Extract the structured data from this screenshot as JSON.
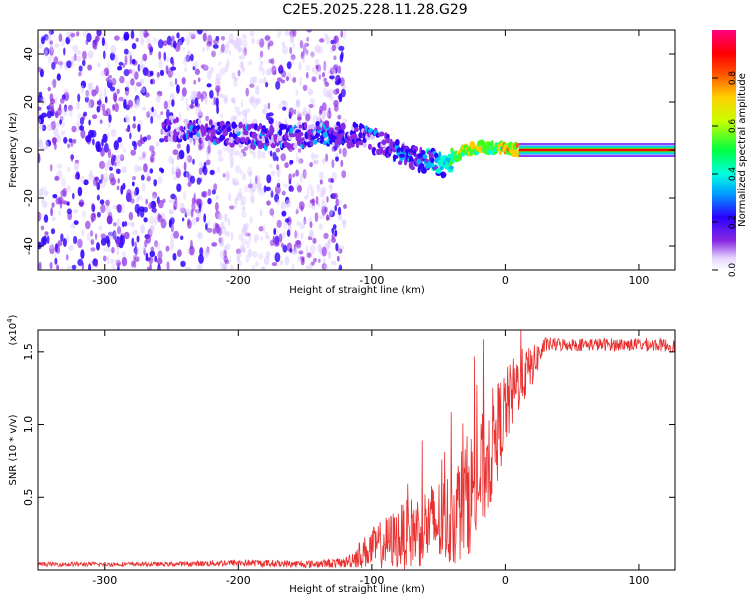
{
  "title": "C2E5.2025.228.11.28.G29",
  "chart_data": [
    {
      "type": "heatmap",
      "xlabel": "Height of straight line (km)",
      "ylabel": "Frequency (Hz)",
      "xlim": [
        -350,
        127
      ],
      "ylim": [
        -50,
        50
      ],
      "x_ticks": [
        -300,
        -200,
        -100,
        0,
        100
      ],
      "y_ticks": [
        -40,
        -20,
        0,
        20,
        40
      ],
      "colorbar": {
        "label": "Normalized spectral amplitude",
        "range": [
          0.0,
          1.0
        ],
        "ticks": [
          0.0,
          0.2,
          0.4,
          0.6,
          0.8
        ],
        "colormap": "rainbow (white→violet→blue→cyan→green→yellow→red→magenta)"
      },
      "ridge": {
        "x": [
          -255,
          -230,
          -200,
          -170,
          -140,
          -110,
          -90,
          -70,
          -55,
          -45,
          -38,
          -30,
          -20,
          -10,
          0,
          10,
          127
        ],
        "frequency": [
          9,
          8,
          6,
          5,
          7,
          6,
          2,
          -3,
          -5,
          -7,
          -3,
          0,
          1,
          1,
          1,
          0,
          0
        ],
        "amplitude": [
          0.25,
          0.3,
          0.3,
          0.3,
          0.3,
          0.3,
          0.32,
          0.35,
          0.4,
          0.5,
          0.6,
          0.7,
          0.75,
          0.6,
          0.75,
          0.8,
          0.85
        ]
      },
      "noise_region_x": [
        -350,
        -120
      ]
    },
    {
      "type": "line",
      "xlabel": "Height of straight line (km)",
      "ylabel": "SNR (10 * v/v)",
      "y_multiplier": "(x10^4)",
      "xlim": [
        -350,
        127
      ],
      "ylim": [
        0,
        16500
      ],
      "x_ticks": [
        -300,
        -200,
        -100,
        0,
        100
      ],
      "y_ticks": [
        0.5,
        1.0,
        1.5
      ],
      "y_tick_labels": [
        "0.5",
        "1.0",
        "1.5"
      ],
      "series": [
        {
          "color": "#e8302f",
          "x": [
            -350,
            -300,
            -250,
            -200,
            -150,
            -120,
            -100,
            -80,
            -60,
            -40,
            -30,
            -20,
            -10,
            0,
            10,
            20,
            30,
            50,
            80,
            110,
            127
          ],
          "y": [
            400,
            400,
            400,
            500,
            400,
            500,
            1500,
            2200,
            3000,
            3500,
            5000,
            6000,
            8500,
            11000,
            13000,
            14000,
            15500,
            15500,
            15500,
            15500,
            15400
          ],
          "noise": [
            150,
            150,
            150,
            250,
            250,
            350,
            1400,
            2200,
            2800,
            3400,
            4200,
            4200,
            4000,
            2800,
            2200,
            1400,
            500,
            450,
            450,
            450,
            450
          ]
        }
      ]
    }
  ]
}
